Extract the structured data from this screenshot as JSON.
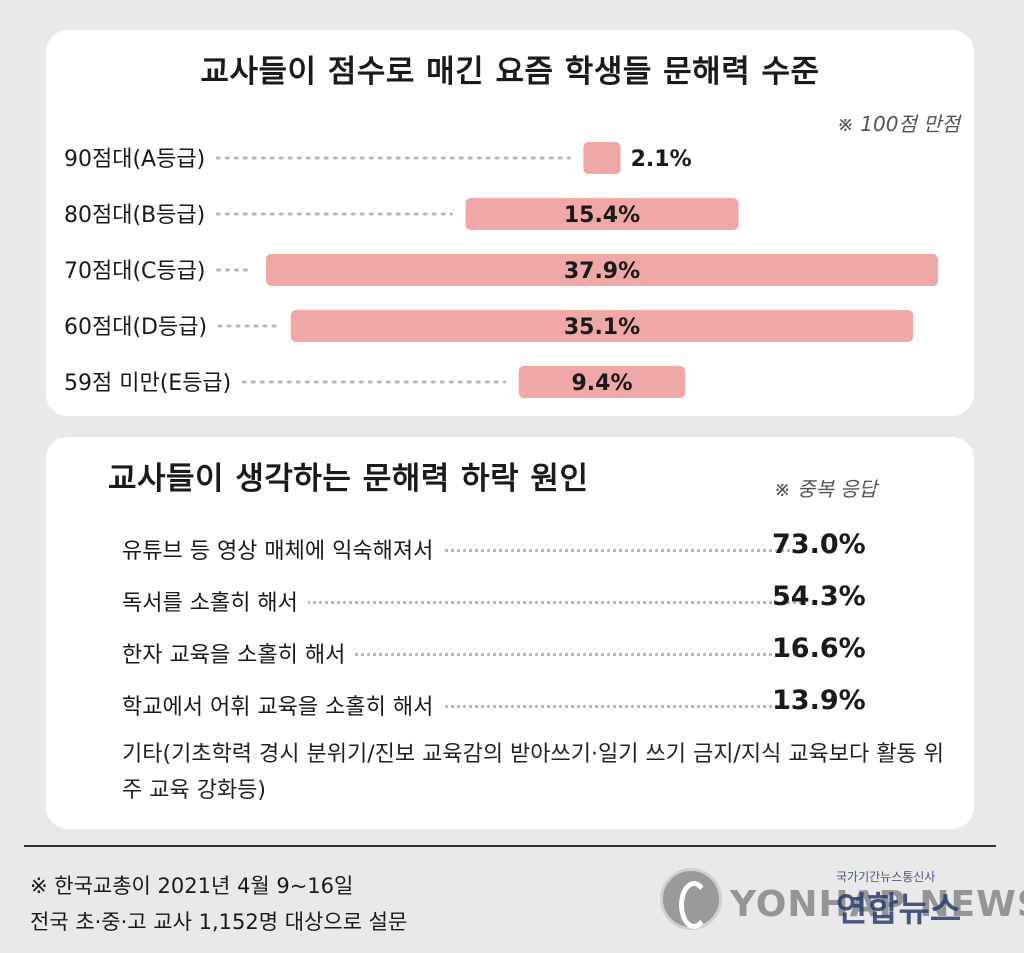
{
  "chart_data": {
    "type": "bar",
    "title": "교사들이 점수로 매긴 요즘 학생들 문해력 수준",
    "note": "※ 100점 만점",
    "categories": [
      "90점대(A등급)",
      "80점대(B등급)",
      "70점대(C등급)",
      "60점대(D등급)",
      "59점 미만(E등급)"
    ],
    "values": [
      2.1,
      15.4,
      37.9,
      35.1,
      9.4
    ],
    "value_labels": [
      "2.1%",
      "15.4%",
      "37.9%",
      "35.1%",
      "9.4%"
    ],
    "bar_color": "#f0a7a7",
    "orientation": "horizontal"
  },
  "causes": {
    "title": "교사들이 생각하는 문해력 하락 원인",
    "note": "※ 중복 응답",
    "items": [
      {
        "label": "유튜브 등 영상 매체에 익숙해져서",
        "value": "73.0%"
      },
      {
        "label": "독서를 소홀히 해서",
        "value": "54.3%"
      },
      {
        "label": "한자 교육을 소홀히 해서",
        "value": "16.6%"
      },
      {
        "label": "학교에서 어휘 교육을 소홀히 해서",
        "value": "13.9%"
      }
    ],
    "other": "기타(기초학력 경시 분위기/진보 교육감의 받아쓰기·일기 쓰기 금지/지식 교육보다 활동 위주 교육 강화등)"
  },
  "source": {
    "line1": "※ 한국교총이 2021년 4월 9~16일",
    "line2": "전국 초·중·고 교사 1,152명 대상으로 설문"
  },
  "logo": {
    "sub": "국가기간뉴스통신사",
    "text": "YONHAP NEWS",
    "kr": "연합뉴스",
    "icon": "yonhap-emblem-icon"
  }
}
